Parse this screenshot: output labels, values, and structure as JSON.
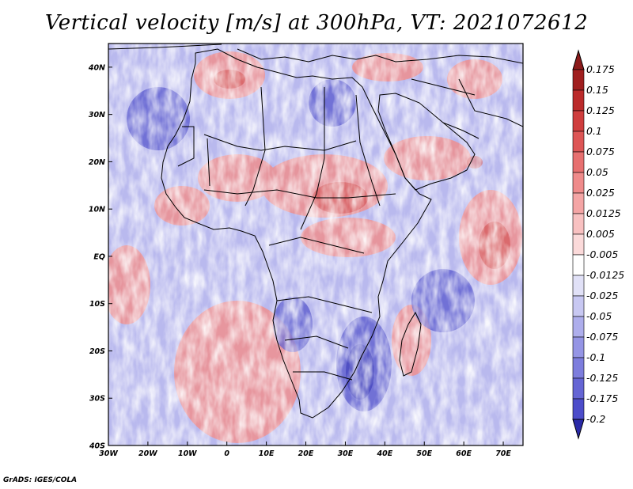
{
  "title": "Vertical velocity [m/s] at 300hPa, VT: 2021072612",
  "credit": "GrADS: IGES/COLA",
  "map": {
    "lon_range": [
      -30,
      75
    ],
    "lat_range": [
      -40,
      45
    ],
    "lon_ticks": [
      {
        "value": -30,
        "label": "30W"
      },
      {
        "value": -20,
        "label": "20W"
      },
      {
        "value": -10,
        "label": "10W"
      },
      {
        "value": 0,
        "label": "0"
      },
      {
        "value": 10,
        "label": "10E"
      },
      {
        "value": 20,
        "label": "20E"
      },
      {
        "value": 30,
        "label": "30E"
      },
      {
        "value": 40,
        "label": "40E"
      },
      {
        "value": 50,
        "label": "50E"
      },
      {
        "value": 60,
        "label": "60E"
      },
      {
        "value": 70,
        "label": "70E"
      }
    ],
    "lat_ticks": [
      {
        "value": 40,
        "label": "40N"
      },
      {
        "value": 30,
        "label": "30N"
      },
      {
        "value": 20,
        "label": "20N"
      },
      {
        "value": 10,
        "label": "10N"
      },
      {
        "value": 0,
        "label": "EQ"
      },
      {
        "value": -10,
        "label": "10S"
      },
      {
        "value": -20,
        "label": "20S"
      },
      {
        "value": -30,
        "label": "30S"
      },
      {
        "value": -40,
        "label": "40S"
      }
    ]
  },
  "colorbar": {
    "levels": [
      {
        "label": "0.175",
        "color": "#a01f1f"
      },
      {
        "label": "0.15",
        "color": "#bb2b2b"
      },
      {
        "label": "0.125",
        "color": "#cf3e3e"
      },
      {
        "label": "0.1",
        "color": "#dd5656"
      },
      {
        "label": "0.075",
        "color": "#e77070"
      },
      {
        "label": "0.05",
        "color": "#ef8b8b"
      },
      {
        "label": "0.025",
        "color": "#f4a5a5"
      },
      {
        "label": "0.0125",
        "color": "#f8c1c1"
      },
      {
        "label": "0.005",
        "color": "#fbdada"
      },
      {
        "label": "-0.005",
        "color": "#ffffff"
      },
      {
        "label": "-0.0125",
        "color": "#e1e1f7"
      },
      {
        "label": "-0.025",
        "color": "#c8c8f2"
      },
      {
        "label": "-0.05",
        "color": "#aeaeec"
      },
      {
        "label": "-0.075",
        "color": "#9595e5"
      },
      {
        "label": "-0.1",
        "color": "#7d7ddd"
      },
      {
        "label": "-0.125",
        "color": "#6565d4"
      },
      {
        "label": "-0.175",
        "color": "#4d4dca"
      },
      {
        "label": "-0.2",
        "color": "#3535bd"
      }
    ],
    "top_color": "#8b1a1a",
    "bottom_color": "#2a2aa8"
  }
}
